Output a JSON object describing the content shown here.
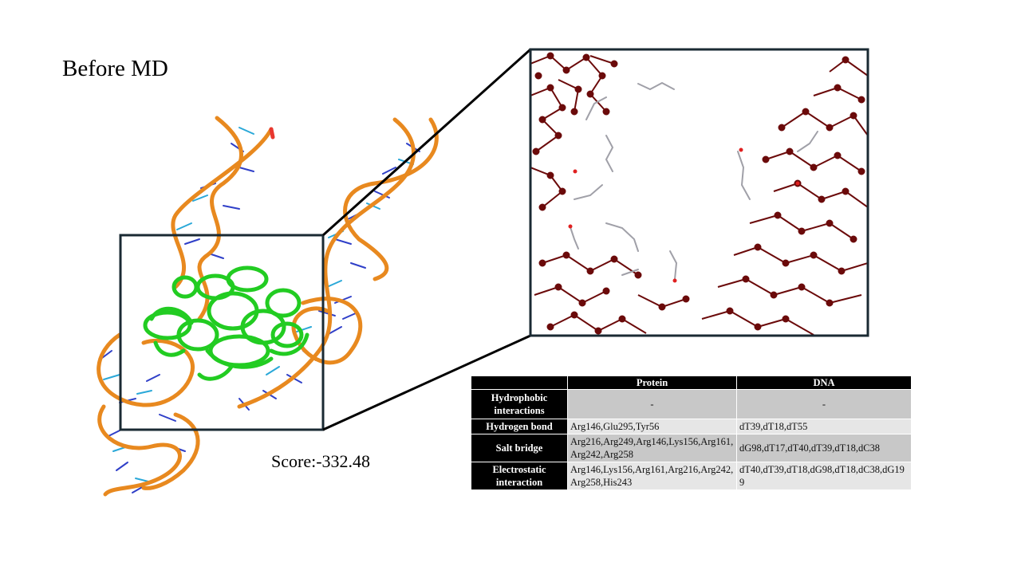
{
  "title": "Before MD",
  "score": "Score:-332.48",
  "table": {
    "headers": [
      "",
      "Protein",
      "DNA"
    ],
    "rows": [
      {
        "label": "Hydrophobic interactions",
        "protein": "-",
        "dna": "-"
      },
      {
        "label": "Hydrogen bond",
        "protein": "Arg146,Glu295,Tyr56",
        "dna": "dT39,dT18,dT55"
      },
      {
        "label": "Salt bridge",
        "protein": "Arg216,Arg249,Arg146,Lys156,Arg161,Arg242,Arg258",
        "dna": "dG98,dT17,dT40,dT39,dT18,dC38"
      },
      {
        "label": "Electrostatic interaction",
        "protein": "Arg146,Lys156,Arg161,Arg216,Arg242,Arg258,His243",
        "dna": "dT40,dT39,dT18,dG98,dT18,dC38,dG199"
      }
    ]
  },
  "colors": {
    "dna_backbone": "#e8891f",
    "dna_bases": "#2f3fc8",
    "dna_bases_light": "#2aa8d8",
    "protein": "#22cc22",
    "zoom_atoms": "#6b0a0a",
    "frame": "#1a2a33"
  }
}
